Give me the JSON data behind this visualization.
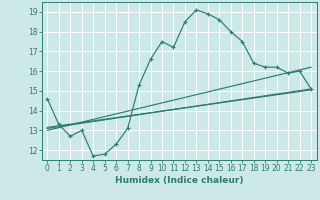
{
  "xlabel": "Humidex (Indice chaleur)",
  "background_color": "#cce8e8",
  "grid_color": "#ffffff",
  "line_color": "#2d7d6e",
  "xlim": [
    -0.5,
    23.5
  ],
  "ylim": [
    11.5,
    19.5
  ],
  "xticks": [
    0,
    1,
    2,
    3,
    4,
    5,
    6,
    7,
    8,
    9,
    10,
    11,
    12,
    13,
    14,
    15,
    16,
    17,
    18,
    19,
    20,
    21,
    22,
    23
  ],
  "yticks": [
    12,
    13,
    14,
    15,
    16,
    17,
    18,
    19
  ],
  "curve1_x": [
    0,
    1,
    2,
    3,
    4,
    5,
    6,
    7,
    8,
    9,
    10,
    11,
    12,
    13,
    14,
    15,
    16,
    17,
    18,
    19,
    20,
    21,
    22,
    23
  ],
  "curve1_y": [
    14.6,
    13.3,
    12.7,
    13.0,
    11.7,
    11.8,
    12.3,
    13.1,
    15.3,
    16.6,
    17.5,
    17.2,
    18.5,
    19.1,
    18.9,
    18.6,
    18.0,
    17.5,
    16.4,
    16.2,
    16.2,
    15.9,
    16.0,
    15.1
  ],
  "line1_start_x": 0,
  "line1_start_y": 13.0,
  "line1_end_x": 23,
  "line1_end_y": 16.2,
  "line2_start_x": 0,
  "line2_start_y": 13.1,
  "line2_end_x": 23,
  "line2_end_y": 15.1,
  "line3_start_x": 0,
  "line3_start_y": 13.15,
  "line3_end_x": 23,
  "line3_end_y": 15.05
}
